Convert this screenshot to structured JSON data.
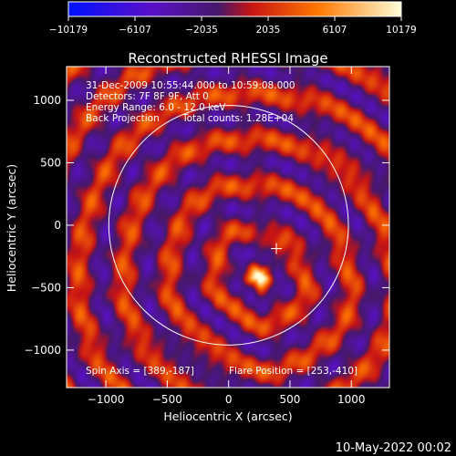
{
  "chart_data": {
    "type": "heatmap",
    "title": "Reconstructed RHESSI Image",
    "xlabel": "Heliocentric X (arcsec)",
    "ylabel": "Heliocentric Y (arcsec)",
    "xlim": [
      -1320,
      1310
    ],
    "ylim": [
      -1300,
      1270
    ],
    "x_ticks": [
      -1000,
      -500,
      0,
      500,
      1000
    ],
    "y_ticks": [
      -1000,
      -500,
      0,
      500,
      1000
    ],
    "colorbar": {
      "min": -10179,
      "max": 10179,
      "tick_values": [
        -10179,
        -6107,
        -2035,
        2035,
        6107,
        10179
      ],
      "tick_labels": [
        "−10179",
        "−6107",
        "−2035",
        "2035",
        "6107",
        "10179"
      ],
      "colors": [
        "#0010ff",
        "#5a10c8",
        "#46186a",
        "#c81414",
        "#ff7800",
        "#ffffd8"
      ]
    },
    "annotations": [
      "31-Dec-2009 10:55:44.000 to 10:59:08.000",
      "Detectors: 7F 8F 9F, Att 0",
      "Energy Range: 6.0 - 12.0 keV",
      "Back Projection",
      "Total counts: 1.28E+04"
    ],
    "spin_axis_label": "Spin Axis = [389,-187]",
    "flare_position_label": "Flare Position = [253,-410]",
    "spin_axis": [
      389,
      -187
    ],
    "flare_position": [
      253,
      -410
    ],
    "solar_limb_radius": 976,
    "peak": [
      253,
      -410
    ],
    "secondary_source": [
      389,
      -160
    ]
  },
  "footer": {
    "date": "10-May-2022 00:02"
  }
}
